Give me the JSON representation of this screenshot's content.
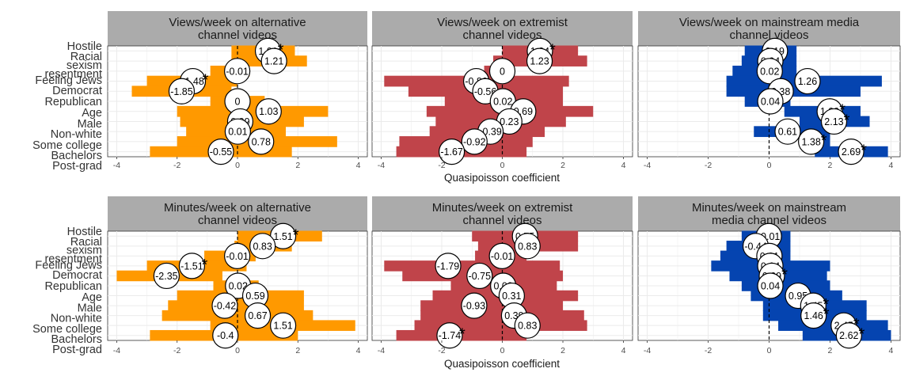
{
  "colors": {
    "alternative": "#FF9900",
    "extremist": "#C0444A",
    "mainstream": "#0544B0",
    "strip": "#ABABAB",
    "grid": "#EBEBEB"
  },
  "chart_data": [
    {
      "type": "bar",
      "orientation": "horizontal",
      "title": [
        "Views/week on alternative",
        "channel videos"
      ],
      "xlim": [
        -4.3,
        4.3
      ],
      "xticks": [
        "-4",
        "-2",
        "0",
        "2",
        "4"
      ],
      "categories": [
        "Hostile sexism",
        "Racial resentment",
        "Feeling Jews",
        "Democrat",
        "Republican",
        "Age",
        "Male",
        "Non-white",
        "Some college",
        "Bachelors",
        "Post-grad"
      ],
      "category_labels": [
        "Hostile",
        "Racial",
        "sexism",
        "resentment",
        "Feeling Jews",
        "Democrat",
        "Republican",
        "Age",
        "Male",
        "Non-white",
        "Some college",
        "Bachelors",
        "Post-grad"
      ],
      "intervals": [
        [
          -0.2,
          1.9
        ],
        [
          -0.2,
          2.3
        ],
        [
          -0.9,
          0.4
        ],
        [
          -3.0,
          0.0
        ],
        [
          -3.5,
          -0.2
        ],
        [
          -0.9,
          0.9
        ],
        [
          -2.0,
          3.0
        ],
        [
          -1.9,
          2.2
        ],
        [
          -1.7,
          1.6
        ],
        [
          -2.0,
          3.3
        ],
        [
          -2.9,
          1.8
        ]
      ],
      "estimates": [
        1.01,
        1.21,
        -0.01,
        -1.48,
        -1.85,
        0,
        1.03,
        0.09,
        0.01,
        0.78,
        -0.55
      ],
      "labels": [
        "1.01",
        "1.21",
        "-0.01",
        "-1.48",
        "-1.85",
        "0",
        "1.03",
        "0.09",
        "0.01",
        "0.78",
        "-0.55"
      ],
      "significant": [
        true,
        false,
        false,
        true,
        false,
        false,
        false,
        false,
        false,
        false,
        false
      ]
    },
    {
      "type": "bar",
      "orientation": "horizontal",
      "title": [
        "Views/week on extremist",
        "channel videos"
      ],
      "xlim": [
        -4.3,
        4.3
      ],
      "xticks": [
        "-4",
        "-2",
        "0",
        "2",
        "4"
      ],
      "categories": [
        "Hostile sexism",
        "Racial resentment",
        "Feeling Jews",
        "Democrat",
        "Republican",
        "Age",
        "Male",
        "Non-white",
        "Some college",
        "Bachelors",
        "Post-grad"
      ],
      "category_labels": [
        "Hostile",
        "Racial",
        "sexism",
        "resentment",
        "Feeling Jews",
        "Democrat",
        "Republican",
        "Age",
        "Male",
        "Non-white",
        "Some college",
        "Bachelors",
        "Post-grad"
      ],
      "intervals": [
        [
          0.0,
          2.5
        ],
        [
          -0.3,
          2.8
        ],
        [
          -0.6,
          0.4
        ],
        [
          -3.9,
          2.2
        ],
        [
          -3.1,
          2.0
        ],
        [
          -1.9,
          2.0
        ],
        [
          -2.5,
          3.0
        ],
        [
          -2.2,
          2.1
        ],
        [
          -2.4,
          1.4
        ],
        [
          -3.4,
          1.0
        ],
        [
          -3.5,
          0.8
        ]
      ],
      "estimates": [
        1.24,
        1.23,
        0,
        -0.86,
        -0.56,
        0.02,
        0.69,
        0.23,
        -0.39,
        -0.92,
        -1.67
      ],
      "labels": [
        "1.24",
        "1.23",
        "0",
        "-0.86",
        "-0.56",
        "0.02",
        "0.69",
        "0.23",
        "-0.39",
        "-0.92",
        "-1.67"
      ],
      "significant": [
        true,
        false,
        false,
        false,
        false,
        false,
        false,
        false,
        false,
        false,
        false
      ]
    },
    {
      "type": "bar",
      "orientation": "horizontal",
      "title": [
        "Views/week on mainstream media",
        "channel videos"
      ],
      "xlim": [
        -4.3,
        4.3
      ],
      "xticks": [
        "-4",
        "-2",
        "0",
        "2",
        "4"
      ],
      "categories": [
        "Hostile sexism",
        "Racial resentment",
        "Feeling Jews",
        "Democrat",
        "Republican",
        "Age",
        "Male",
        "Non-white",
        "Some college",
        "Bachelors",
        "Post-grad"
      ],
      "category_labels": [
        "Hostile",
        "Racial",
        "sexism",
        "resentment",
        "Feeling Jews",
        "Democrat",
        "Republican",
        "Age",
        "Male",
        "Non-white",
        "Some college",
        "Bachelors",
        "Post-grad"
      ],
      "intervals": [
        [
          -0.8,
          0.9
        ],
        [
          -0.9,
          0.9
        ],
        [
          -1.2,
          0.9
        ],
        [
          -1.4,
          3.7
        ],
        [
          -1.4,
          3.0
        ],
        [
          -0.8,
          0.7
        ],
        [
          0.5,
          3.0
        ],
        [
          1.0,
          3.3
        ],
        [
          -0.5,
          2.0
        ],
        [
          1.1,
          2.0
        ],
        [
          1.5,
          3.9
        ]
      ],
      "estimates": [
        0.19,
        0.04,
        0.02,
        1.26,
        0.38,
        0.04,
        1.99,
        2.13,
        0.61,
        1.38,
        2.69
      ],
      "labels": [
        "0.19",
        "0.04",
        "0.02",
        "1.26",
        "0.38",
        "0.04",
        "1.99",
        "2.13",
        "0.61",
        "1.38",
        "2.69"
      ],
      "significant": [
        false,
        false,
        false,
        false,
        false,
        false,
        true,
        true,
        false,
        true,
        true
      ]
    },
    {
      "type": "bar",
      "orientation": "horizontal",
      "title": [
        "Minutes/week on alternative",
        "channel videos"
      ],
      "xlim": [
        -4.3,
        4.3
      ],
      "xticks": [
        "-4",
        "-2",
        "0",
        "2",
        "4"
      ],
      "categories": [
        "Hostile sexism",
        "Racial resentment",
        "Feeling Jews",
        "Democrat",
        "Republican",
        "Age",
        "Male",
        "Non-white",
        "Some college",
        "Bachelors",
        "Post-grad"
      ],
      "category_labels": [
        "Hostile",
        "Racial",
        "sexism",
        "resentment",
        "Feeling Jews",
        "Democrat",
        "Republican",
        "Age",
        "Male",
        "Non-white",
        "Some college",
        "Bachelors",
        "Post-grad"
      ],
      "intervals": [
        [
          0.0,
          2.8
        ],
        [
          -0.1,
          1.8
        ],
        [
          -1.1,
          0.6
        ],
        [
          -3.0,
          0.3
        ],
        [
          -4.0,
          -0.5
        ],
        [
          -0.8,
          0.7
        ],
        [
          -2.0,
          2.2
        ],
        [
          -2.3,
          2.2
        ],
        [
          -2.5,
          2.5
        ],
        [
          -0.9,
          3.9
        ],
        [
          -2.9,
          2.0
        ]
      ],
      "estimates": [
        1.51,
        0.83,
        -0.01,
        -1.51,
        -2.35,
        0.02,
        0.59,
        -0.42,
        0.67,
        1.51,
        -0.4
      ],
      "labels": [
        "1.51",
        "0.83",
        "-0.01",
        "-1.51",
        "-2.35",
        "0.02",
        "0.59",
        "-0.42",
        "0.67",
        "1.51",
        "-0.4"
      ],
      "significant": [
        true,
        false,
        false,
        true,
        false,
        false,
        false,
        false,
        false,
        false,
        false
      ]
    },
    {
      "type": "bar",
      "orientation": "horizontal",
      "title": [
        "Minutes/week on extremist",
        "channel videos"
      ],
      "xlim": [
        -4.3,
        4.3
      ],
      "xticks": [
        "-4",
        "-2",
        "0",
        "2",
        "4"
      ],
      "categories": [
        "Hostile sexism",
        "Racial resentment",
        "Feeling Jews",
        "Democrat",
        "Republican",
        "Age",
        "Male",
        "Non-white",
        "Some college",
        "Bachelors",
        "Post-grad"
      ],
      "category_labels": [
        "Hostile",
        "Racial",
        "sexism",
        "resentment",
        "Feeling Jews",
        "Democrat",
        "Republican",
        "Age",
        "Male",
        "Non-white",
        "Some college",
        "Bachelors",
        "Post-grad"
      ],
      "intervals": [
        [
          -1.0,
          2.5
        ],
        [
          -0.8,
          2.5
        ],
        [
          -0.9,
          0.8
        ],
        [
          -3.9,
          1.9
        ],
        [
          -3.3,
          2.0
        ],
        [
          -1.7,
          1.8
        ],
        [
          -2.3,
          2.5
        ],
        [
          -2.7,
          2.0
        ],
        [
          -2.7,
          2.7
        ],
        [
          -2.9,
          2.8
        ],
        [
          -3.5,
          0.8
        ]
      ],
      "estimates": [
        0.75,
        0.83,
        -0.01,
        -1.79,
        -0.75,
        0.03,
        0.31,
        -0.93,
        0.39,
        0.83,
        -1.74
      ],
      "labels": [
        "0.75",
        "0.83",
        "-0.01",
        "-1.79",
        "-0.75",
        "0.03",
        "0.31",
        "-0.93",
        "0.39",
        "0.83",
        "-1.74"
      ],
      "significant": [
        false,
        false,
        false,
        false,
        false,
        false,
        false,
        false,
        false,
        false,
        true
      ]
    },
    {
      "type": "bar",
      "orientation": "horizontal",
      "title": [
        "Minutes/week on mainstream",
        "media channel videos"
      ],
      "xlim": [
        -4.3,
        4.3
      ],
      "xticks": [
        "-4",
        "-2",
        "0",
        "2",
        "4"
      ],
      "categories": [
        "Hostile sexism",
        "Racial resentment",
        "Feeling Jews",
        "Democrat",
        "Republican",
        "Age",
        "Male",
        "Non-white",
        "Some college",
        "Bachelors",
        "Post-grad"
      ],
      "category_labels": [
        "Hostile",
        "Racial",
        "sexism",
        "resentment",
        "Feeling Jews",
        "Democrat",
        "Republican",
        "Age",
        "Male",
        "Non-white",
        "Some college",
        "Bachelors",
        "Post-grad"
      ],
      "intervals": [
        [
          -0.9,
          0.7
        ],
        [
          -1.4,
          0.7
        ],
        [
          -1.6,
          0.7
        ],
        [
          -1.9,
          2.0
        ],
        [
          -1.3,
          1.9
        ],
        [
          -0.9,
          2.0
        ],
        [
          -0.6,
          2.4
        ],
        [
          -0.2,
          3.2
        ],
        [
          -0.2,
          3.2
        ],
        [
          0.3,
          3.9
        ],
        [
          1.1,
          4.0
        ]
      ],
      "estimates": [
        -0.01,
        -0.44,
        0.01,
        0.04,
        0.09,
        0.04,
        0.95,
        1.45,
        1.46,
        2.45,
        2.62
      ],
      "labels": [
        "-0.01",
        "-0.44",
        "0.01",
        "0.04",
        "0.09",
        "0.04",
        "0.95",
        "1.45",
        "1.46",
        "2.45",
        "2.62"
      ],
      "significant": [
        false,
        false,
        false,
        false,
        true,
        false,
        false,
        true,
        true,
        true,
        true
      ]
    }
  ],
  "xlabel": "Quasipoisson coefficient"
}
